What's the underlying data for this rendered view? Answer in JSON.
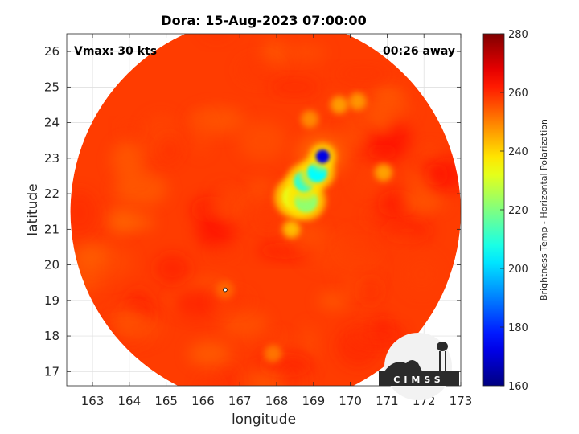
{
  "chart_data": {
    "type": "heatmap",
    "title": "Dora: 15-Aug-2023 07:00:00",
    "xlabel": "longitude",
    "ylabel": "latitude",
    "xlim": [
      162.3,
      173.0
    ],
    "ylim": [
      16.6,
      26.5
    ],
    "x_ticks": [
      163,
      164,
      165,
      166,
      167,
      168,
      169,
      170,
      171,
      172,
      173
    ],
    "y_ticks": [
      17,
      18,
      19,
      20,
      21,
      22,
      23,
      24,
      25,
      26
    ],
    "grid": true,
    "annotations": {
      "left": "Vmax: 30 kts",
      "right": "00:26 away"
    },
    "colorbar": {
      "label": "Brightness Temp - Horizontal Polarization",
      "min": 160,
      "max": 280,
      "ticks": [
        160,
        180,
        200,
        220,
        240,
        260,
        280
      ],
      "colormap": "jet"
    },
    "swath": {
      "center": [
        167.7,
        21.5
      ],
      "radius_deg": 5.3,
      "background_value": 258
    },
    "features": [
      {
        "lon": 169.25,
        "lat": 23.05,
        "value": 172
      },
      {
        "lon": 169.1,
        "lat": 22.6,
        "value": 205
      },
      {
        "lon": 168.75,
        "lat": 22.35,
        "value": 210
      },
      {
        "lon": 168.8,
        "lat": 21.8,
        "value": 222
      },
      {
        "lon": 168.5,
        "lat": 21.9,
        "value": 232
      },
      {
        "lon": 168.4,
        "lat": 21.0,
        "value": 238
      },
      {
        "lon": 169.7,
        "lat": 24.5,
        "value": 243
      },
      {
        "lon": 170.2,
        "lat": 24.6,
        "value": 244
      },
      {
        "lon": 170.9,
        "lat": 22.6,
        "value": 242
      },
      {
        "lon": 168.9,
        "lat": 24.1,
        "value": 246
      },
      {
        "lon": 167.9,
        "lat": 17.5,
        "value": 249
      },
      {
        "lon": 166.6,
        "lat": 19.3,
        "value": 252
      }
    ],
    "center_marker": {
      "lon": 166.6,
      "lat": 19.3
    },
    "logo": "CIMSS"
  },
  "colors": {
    "background": "#ffffff",
    "swath_base": "#1f4fe8",
    "grid": "#dcdcdc",
    "axis": "#262626",
    "logo_dark": "#2b2b2b",
    "logo_light": "#f2f2f2"
  }
}
